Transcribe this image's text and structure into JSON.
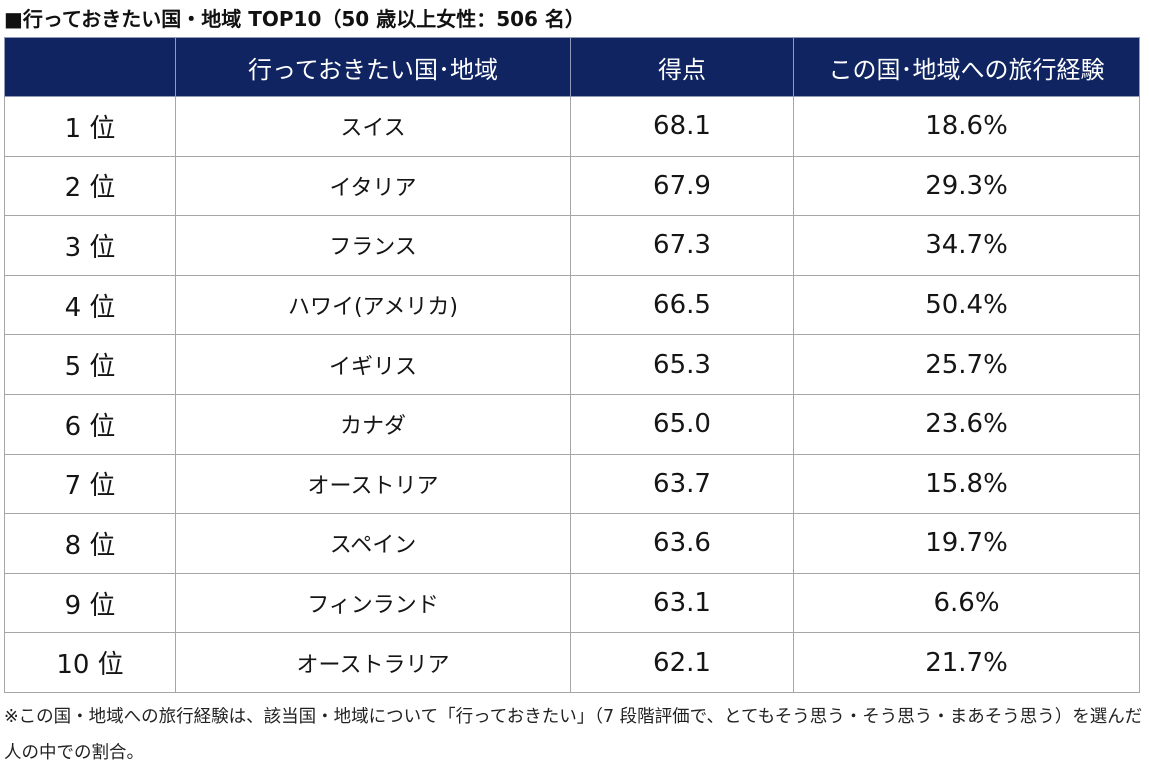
{
  "page": {
    "title": "■行っておきたい国・地域 TOP10（50 歳以上女性：506 名）"
  },
  "table": {
    "headers": [
      "",
      "行っておきたい国･地域",
      "得点",
      "この国･地域への旅行経験"
    ],
    "header_bg": "#0f2461",
    "header_text_color": "#ffffff",
    "rows": [
      {
        "rank": "1 位",
        "country": "スイス",
        "score": "68.1",
        "experience": "18.6%"
      },
      {
        "rank": "2 位",
        "country": "イタリア",
        "score": "67.9",
        "experience": "29.3%"
      },
      {
        "rank": "3 位",
        "country": "フランス",
        "score": "67.3",
        "experience": "34.7%"
      },
      {
        "rank": "4 位",
        "country": "ハワイ(アメリカ)",
        "score": "66.5",
        "experience": "50.4%"
      },
      {
        "rank": "5 位",
        "country": "イギリス",
        "score": "65.3",
        "experience": "25.7%"
      },
      {
        "rank": "6 位",
        "country": "カナダ",
        "score": "65.0",
        "experience": "23.6%"
      },
      {
        "rank": "7 位",
        "country": "オーストリア",
        "score": "63.7",
        "experience": "15.8%"
      },
      {
        "rank": "8 位",
        "country": "スペイン",
        "score": "63.6",
        "experience": "19.7%"
      },
      {
        "rank": "9 位",
        "country": "フィンランド",
        "score": "63.1",
        "experience": "6.6%"
      },
      {
        "rank": "10 位",
        "country": "オーストラリア",
        "score": "62.1",
        "experience": "21.7%"
      }
    ]
  },
  "note": {
    "text": "※この国・地域への旅行経験は、該当国・地域について「行っておきたい」（7 段階評価で、とてもそう思う・そう思う・まあそう思う）を選んだ人の中での割合。"
  }
}
